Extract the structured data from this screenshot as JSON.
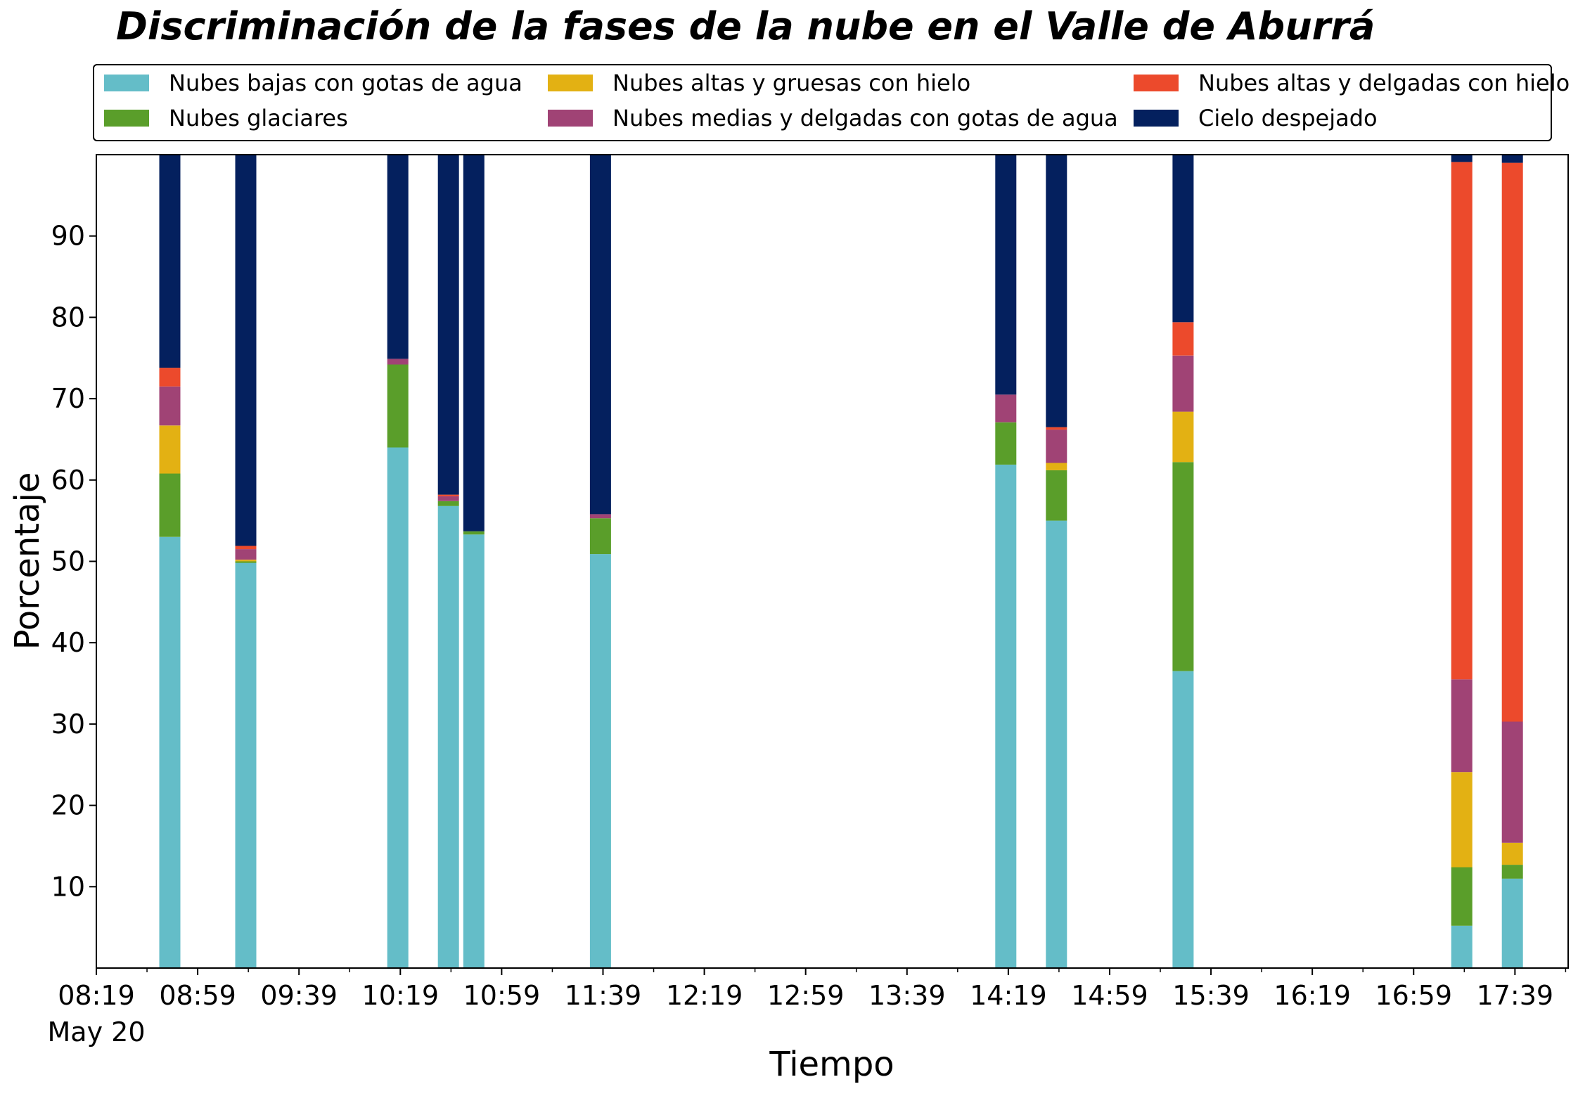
{
  "chart_data": {
    "type": "bar",
    "stacked": true,
    "title": "Discriminación de la fases de la nube en el Valle de Aburrá",
    "xlabel": "Tiempo",
    "ylabel": "Porcentaje",
    "ylim": [
      0,
      100
    ],
    "yticks": [
      10,
      20,
      30,
      40,
      50,
      60,
      70,
      80,
      90
    ],
    "xlim": [
      "08:19",
      "18:00"
    ],
    "xticks": [
      "08:19",
      "08:59",
      "09:39",
      "10:19",
      "10:59",
      "11:39",
      "12:19",
      "12:59",
      "13:39",
      "14:19",
      "14:59",
      "15:39",
      "16:19",
      "16:59",
      "17:39"
    ],
    "xtick_date_label": "May 20",
    "legend_position": "top",
    "grid": false,
    "x": [
      "08:48",
      "09:18",
      "10:18",
      "10:38",
      "10:48",
      "11:38",
      "14:18",
      "14:38",
      "15:28",
      "17:18",
      "17:38"
    ],
    "series": [
      {
        "name": "Nubes bajas con gotas de agua",
        "color": "#64BDC8",
        "values": [
          53.0,
          49.8,
          64.0,
          56.8,
          53.3,
          50.9,
          61.9,
          55.0,
          36.5,
          5.2,
          11.0
        ]
      },
      {
        "name": "Nubes glaciares",
        "color": "#5A9E2A",
        "values": [
          7.8,
          0.2,
          10.2,
          0.6,
          0.4,
          4.4,
          5.2,
          6.2,
          25.7,
          7.2,
          1.7
        ]
      },
      {
        "name": "Nubes altas y gruesas con hielo",
        "color": "#E3B113",
        "values": [
          5.9,
          0.2,
          0.0,
          0.0,
          0.0,
          0.0,
          0.0,
          0.9,
          6.2,
          11.7,
          2.7
        ]
      },
      {
        "name": "Nubes medias y delgadas con gotas de agua",
        "color": "#A04375",
        "values": [
          4.8,
          1.3,
          0.7,
          0.6,
          0.0,
          0.5,
          3.4,
          4.1,
          6.9,
          11.4,
          14.9
        ]
      },
      {
        "name": "Nubes altas y delgadas con hielo",
        "color": "#EC4A2C",
        "values": [
          2.3,
          0.4,
          0.0,
          0.2,
          0.0,
          0.0,
          0.0,
          0.3,
          4.1,
          63.6,
          68.7
        ]
      },
      {
        "name": "Cielo despejado",
        "color": "#04205E",
        "values": [
          26.2,
          48.1,
          25.1,
          41.8,
          46.3,
          44.2,
          29.5,
          33.5,
          20.6,
          0.9,
          1.0
        ]
      }
    ]
  }
}
